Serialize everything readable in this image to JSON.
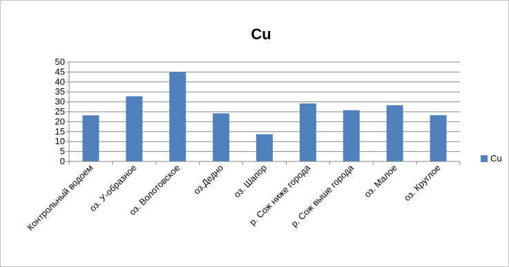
{
  "chart_data": {
    "type": "bar",
    "title": "Cu",
    "categories": [
      "Контрольный водоем",
      "оз. У-образное",
      "оз. Волотовское",
      "оз.Дедно",
      "оз. Шапор",
      "р. Сож ниже города",
      "р. Сож выше города",
      "оз. Малое",
      "оз. Круглое"
    ],
    "series": [
      {
        "name": "Cu",
        "values": [
          23.2,
          32.8,
          45.0,
          24.2,
          13.7,
          29.2,
          25.8,
          28.3,
          23.3
        ]
      }
    ],
    "ylim": [
      0,
      50
    ],
    "yticks": [
      0,
      5,
      10,
      15,
      20,
      25,
      30,
      35,
      40,
      45,
      50
    ],
    "grid": true,
    "legend_position": "right",
    "colors": {
      "bar": "#4F81BD",
      "grid": "#868686",
      "axis": "#868686"
    }
  }
}
